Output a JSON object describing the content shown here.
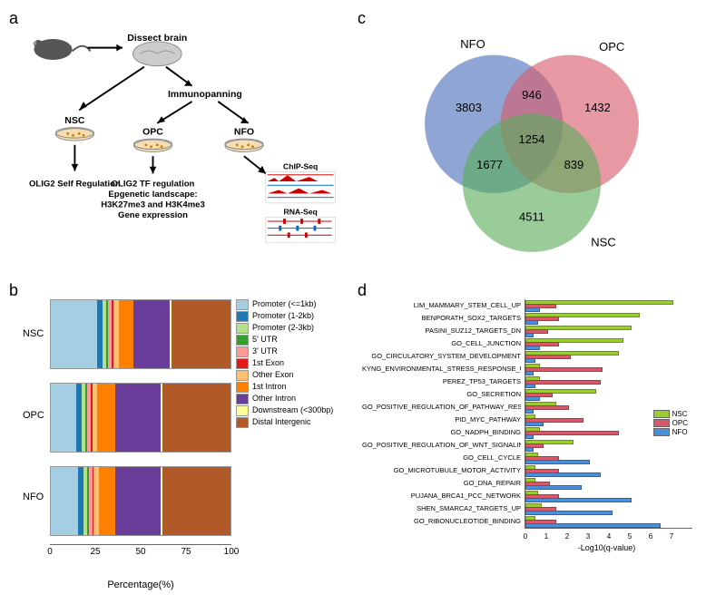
{
  "panelLabels": {
    "a": "a",
    "b": "b",
    "c": "c",
    "d": "d"
  },
  "panelA": {
    "top": {
      "mouse": "mouse",
      "arrow1": "→",
      "dissect": "Dissect brain"
    },
    "branches": {
      "left": {
        "label": "NSC",
        "below": "OLIG2 Self Regulation"
      },
      "mid": {
        "label": "OPC",
        "immunopanning": "Immunopanning"
      },
      "right": {
        "label": "NFO"
      },
      "centerBelow1": "OLIG2 TF regulation",
      "centerBelow2": "Epgenetic landscape:",
      "centerBelow3": "H3K27me3 and H3K4me3",
      "centerBelow4": "Gene expression",
      "chip": "ChIP-Seq",
      "rna": "RNA-Seq"
    }
  },
  "panelB": {
    "type": "stacked-bar-horizontal",
    "rows": [
      "NSC",
      "OPC",
      "NFO"
    ],
    "xlabel": "Percentage(%)",
    "xticks": [
      0,
      25,
      50,
      75,
      100
    ],
    "categories": [
      {
        "name": "Promoter (<=1kb)",
        "color": "#a6cee3"
      },
      {
        "name": "Promoter (1-2kb)",
        "color": "#1f78b4"
      },
      {
        "name": "Promoter (2-3kb)",
        "color": "#b2df8a"
      },
      {
        "name": "5' UTR",
        "color": "#33a02c"
      },
      {
        "name": "3' UTR",
        "color": "#fb9a99"
      },
      {
        "name": "1st Exon",
        "color": "#e31a1c"
      },
      {
        "name": "Other Exon",
        "color": "#fdbf6f"
      },
      {
        "name": "1st Intron",
        "color": "#ff7f00"
      },
      {
        "name": "Other Intron",
        "color": "#6a3d9a"
      },
      {
        "name": "Downstream (<300bp)",
        "color": "#ffff99"
      },
      {
        "name": "Distal Intergenic",
        "color": "#b15928"
      }
    ],
    "data": {
      "NSC": [
        26,
        3,
        2,
        1,
        2,
        1,
        3,
        8,
        20,
        1,
        33
      ],
      "OPC": [
        14,
        3,
        2,
        1,
        2,
        1,
        3,
        10,
        25,
        1,
        38
      ],
      "NFO": [
        15,
        3,
        2,
        1,
        2,
        1,
        3,
        9,
        25,
        1,
        38
      ]
    }
  },
  "panelC": {
    "type": "venn3",
    "sets": [
      {
        "label": "NFO",
        "color": "#4a6db8",
        "opacity": 0.65
      },
      {
        "label": "OPC",
        "color": "#d85a6a",
        "opacity": 0.65
      },
      {
        "label": "NSC",
        "color": "#5aad5a",
        "opacity": 0.65
      }
    ],
    "values": {
      "NFO_only": 3803,
      "OPC_only": 1432,
      "NSC_only": 4511,
      "NFO_OPC": 946,
      "NFO_NSC": 1677,
      "OPC_NSC": 839,
      "all": 1254
    }
  },
  "panelD": {
    "type": "grouped-hbar",
    "xlabel": "-Log10(q-value)",
    "xlim": [
      0,
      8
    ],
    "xticks": [
      0,
      1,
      2,
      3,
      4,
      5,
      6,
      7
    ],
    "series": [
      {
        "name": "NSC",
        "color": "#9acd32"
      },
      {
        "name": "OPC",
        "color": "#d85a6a"
      },
      {
        "name": "NFO",
        "color": "#4a90d9"
      }
    ],
    "bar_border": "#666666",
    "terms": [
      {
        "label": "LIM_MAMMARY_STEM_CELL_UP",
        "values": [
          7.0,
          1.4,
          0.6
        ]
      },
      {
        "label": "BENPORATH_SOX2_TARGETS",
        "values": [
          5.4,
          1.5,
          0.5
        ]
      },
      {
        "label": "PASINI_SUZ12_TARGETS_DN",
        "values": [
          5.0,
          1.0,
          0.3
        ]
      },
      {
        "label": "GO_CELL_JUNCTION",
        "values": [
          4.6,
          1.5,
          0.6
        ]
      },
      {
        "label": "GO_CIRCULATORY_SYSTEM_DEVELOPMENT",
        "values": [
          4.4,
          2.1,
          0.4
        ]
      },
      {
        "label": "KYNG_ENVIRONMENTAL_STRESS_RESPONSE_UP",
        "values": [
          0.6,
          3.6,
          0.3
        ]
      },
      {
        "label": "PEREZ_TP53_TARGETS",
        "values": [
          0.6,
          3.5,
          0.4
        ]
      },
      {
        "label": "GO_SECRETION",
        "values": [
          3.3,
          1.2,
          0.6
        ]
      },
      {
        "label": "GO_POSITIVE_REGULATION_OF_PATHWAY_RESTRICTED_SMAD_PROTEIN_PHOSPHORYLATION",
        "values": [
          1.4,
          2.0,
          0.3
        ]
      },
      {
        "label": "PID_MYC_PATHWAY",
        "values": [
          0.4,
          2.7,
          0.8
        ]
      },
      {
        "label": "GO_NADPH_BINDING",
        "values": [
          0.6,
          4.4,
          0.3
        ]
      },
      {
        "label": "GO_POSITIVE_REGULATION_OF_WNT_SIGNALING_PATHWAY",
        "values": [
          2.2,
          0.8,
          0.3
        ]
      },
      {
        "label": "GO_CELL_CYCLE",
        "values": [
          0.5,
          1.5,
          3.0
        ]
      },
      {
        "label": "GO_MICROTUBULE_MOTOR_ACTIVITY",
        "values": [
          0.4,
          1.5,
          3.5
        ]
      },
      {
        "label": "GO_DNA_REPAIR",
        "values": [
          0.4,
          1.1,
          2.6
        ]
      },
      {
        "label": "PUJANA_BRCA1_PCC_NETWORK",
        "values": [
          0.5,
          1.5,
          5.0
        ]
      },
      {
        "label": "SHEN_SMARCA2_TARGETS_UP",
        "values": [
          0.7,
          1.4,
          4.1
        ]
      },
      {
        "label": "GO_RIBONUCLEOTIDE_BINDING",
        "values": [
          0.4,
          1.4,
          6.4
        ]
      }
    ]
  }
}
